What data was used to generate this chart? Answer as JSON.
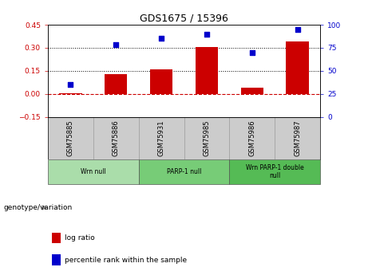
{
  "title": "GDS1675 / 15396",
  "samples": [
    "GSM75885",
    "GSM75886",
    "GSM75931",
    "GSM75985",
    "GSM75986",
    "GSM75987"
  ],
  "log_ratio": [
    0.002,
    0.13,
    0.16,
    0.305,
    0.04,
    0.34
  ],
  "percentile": [
    35,
    78,
    85,
    90,
    70,
    95
  ],
  "ylim_left": [
    -0.15,
    0.45
  ],
  "ylim_right": [
    0,
    100
  ],
  "yticks_left": [
    -0.15,
    0.0,
    0.15,
    0.3,
    0.45
  ],
  "yticks_right": [
    0,
    25,
    50,
    75,
    100
  ],
  "hlines": [
    0.15,
    0.3
  ],
  "bar_color": "#CC0000",
  "dot_color": "#0000CC",
  "zero_line_color": "#CC0000",
  "bar_width": 0.5,
  "groups": [
    {
      "label": "Wrn null",
      "start": 0,
      "end": 2,
      "color": "#AADDAA"
    },
    {
      "label": "PARP-1 null",
      "start": 2,
      "end": 4,
      "color": "#77CC77"
    },
    {
      "label": "Wrn PARP-1 double\nnull",
      "start": 4,
      "end": 6,
      "color": "#55BB55"
    }
  ],
  "legend_items": [
    {
      "label": "log ratio",
      "color": "#CC0000"
    },
    {
      "label": "percentile rank within the sample",
      "color": "#0000CC"
    }
  ],
  "genotype_label": "genotype/variation",
  "tick_color_left": "#CC0000",
  "tick_color_right": "#0000CC",
  "background_color": "#FFFFFF",
  "sample_bg": "#CCCCCC",
  "grid_color": "#000000"
}
